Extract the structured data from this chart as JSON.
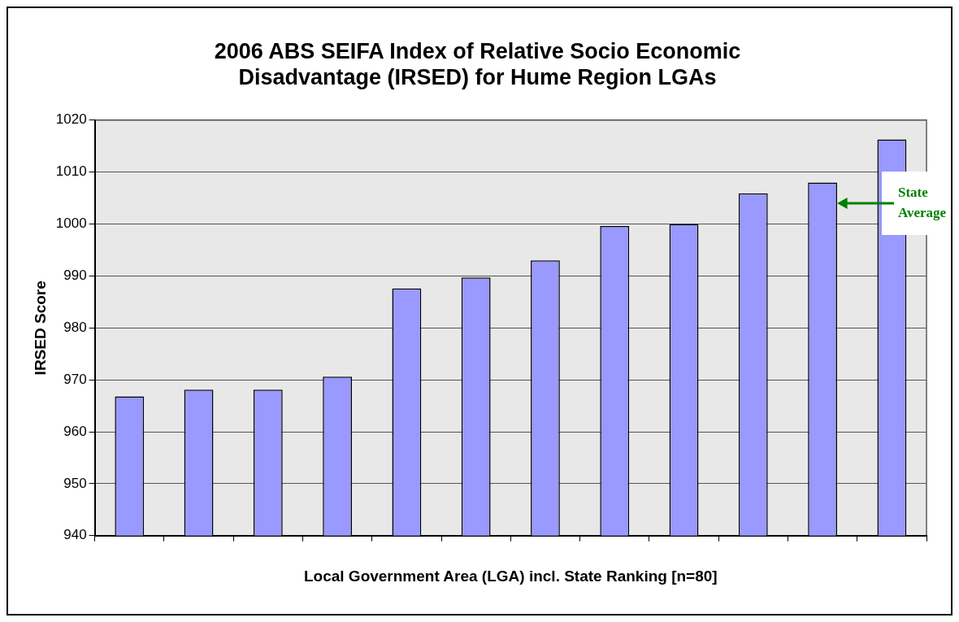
{
  "chart_data": {
    "type": "bar",
    "title": "2006 ABS SEIFA Index of Relative Socio Economic Disadvantage (IRSED) for Hume Region LGAs",
    "xlabel": "Local Government Area (LGA) incl. State Ranking [n=80]",
    "ylabel": "IRSED Score",
    "categories": [
      null,
      null,
      null,
      null,
      null,
      null,
      null,
      null,
      null,
      null,
      null,
      null
    ],
    "values": [
      966.8,
      968.1,
      968.1,
      970.6,
      987.6,
      989.7,
      993.0,
      999.6,
      1000.0,
      1005.9,
      1008.0,
      1016.3
    ],
    "color": "#9999ff",
    "ylim": [
      940,
      1020
    ],
    "yticks": [
      940,
      950,
      960,
      970,
      980,
      990,
      1000,
      1010,
      1020
    ],
    "grid": "y",
    "legend": false,
    "annotations": [
      "State Average"
    ]
  }
}
